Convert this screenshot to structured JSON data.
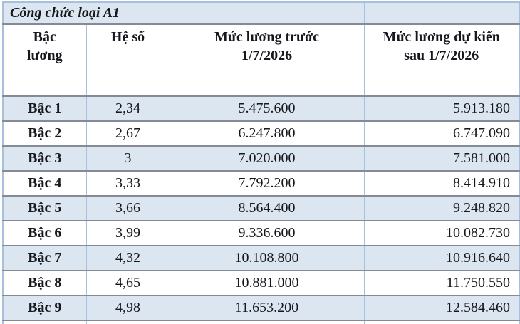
{
  "colors": {
    "row_band": "#dce6f1",
    "row_plain": "#ffffff",
    "border_vertical": "#a6c0dd",
    "border_horizontal": "#848b97",
    "text": "#16181d"
  },
  "table": {
    "title": "Công chức loại A1",
    "columns": [
      {
        "label": "Bậc\nlương"
      },
      {
        "label": "Hệ số"
      },
      {
        "label": "Mức lương trước\n1/7/2026"
      },
      {
        "label": "Mức lương dự kiến\nsau 1/7/2026"
      }
    ],
    "rows": [
      {
        "level": "Bậc 1",
        "he_so": "2,34",
        "truoc": "5.475.600",
        "sau": "5.913.180"
      },
      {
        "level": "Bậc 2",
        "he_so": "2,67",
        "truoc": "6.247.800",
        "sau": "6.747.090"
      },
      {
        "level": "Bậc 3",
        "he_so": "3",
        "truoc": "7.020.000",
        "sau": "7.581.000"
      },
      {
        "level": "Bậc 4",
        "he_so": "3,33",
        "truoc": "7.792.200",
        "sau": "8.414.910"
      },
      {
        "level": "Bậc 5",
        "he_so": "3,66",
        "truoc": "8.564.400",
        "sau": "9.248.820"
      },
      {
        "level": "Bậc 6",
        "he_so": "3,99",
        "truoc": "9.336.600",
        "sau": "10.082.730"
      },
      {
        "level": "Bậc 7",
        "he_so": "4,32",
        "truoc": "10.108.800",
        "sau": "10.916.640"
      },
      {
        "level": "Bậc 8",
        "he_so": "4,65",
        "truoc": "10.881.000",
        "sau": "11.750.550"
      },
      {
        "level": "Bậc 9",
        "he_so": "4,98",
        "truoc": "11.653.200",
        "sau": "12.584.460"
      }
    ]
  }
}
